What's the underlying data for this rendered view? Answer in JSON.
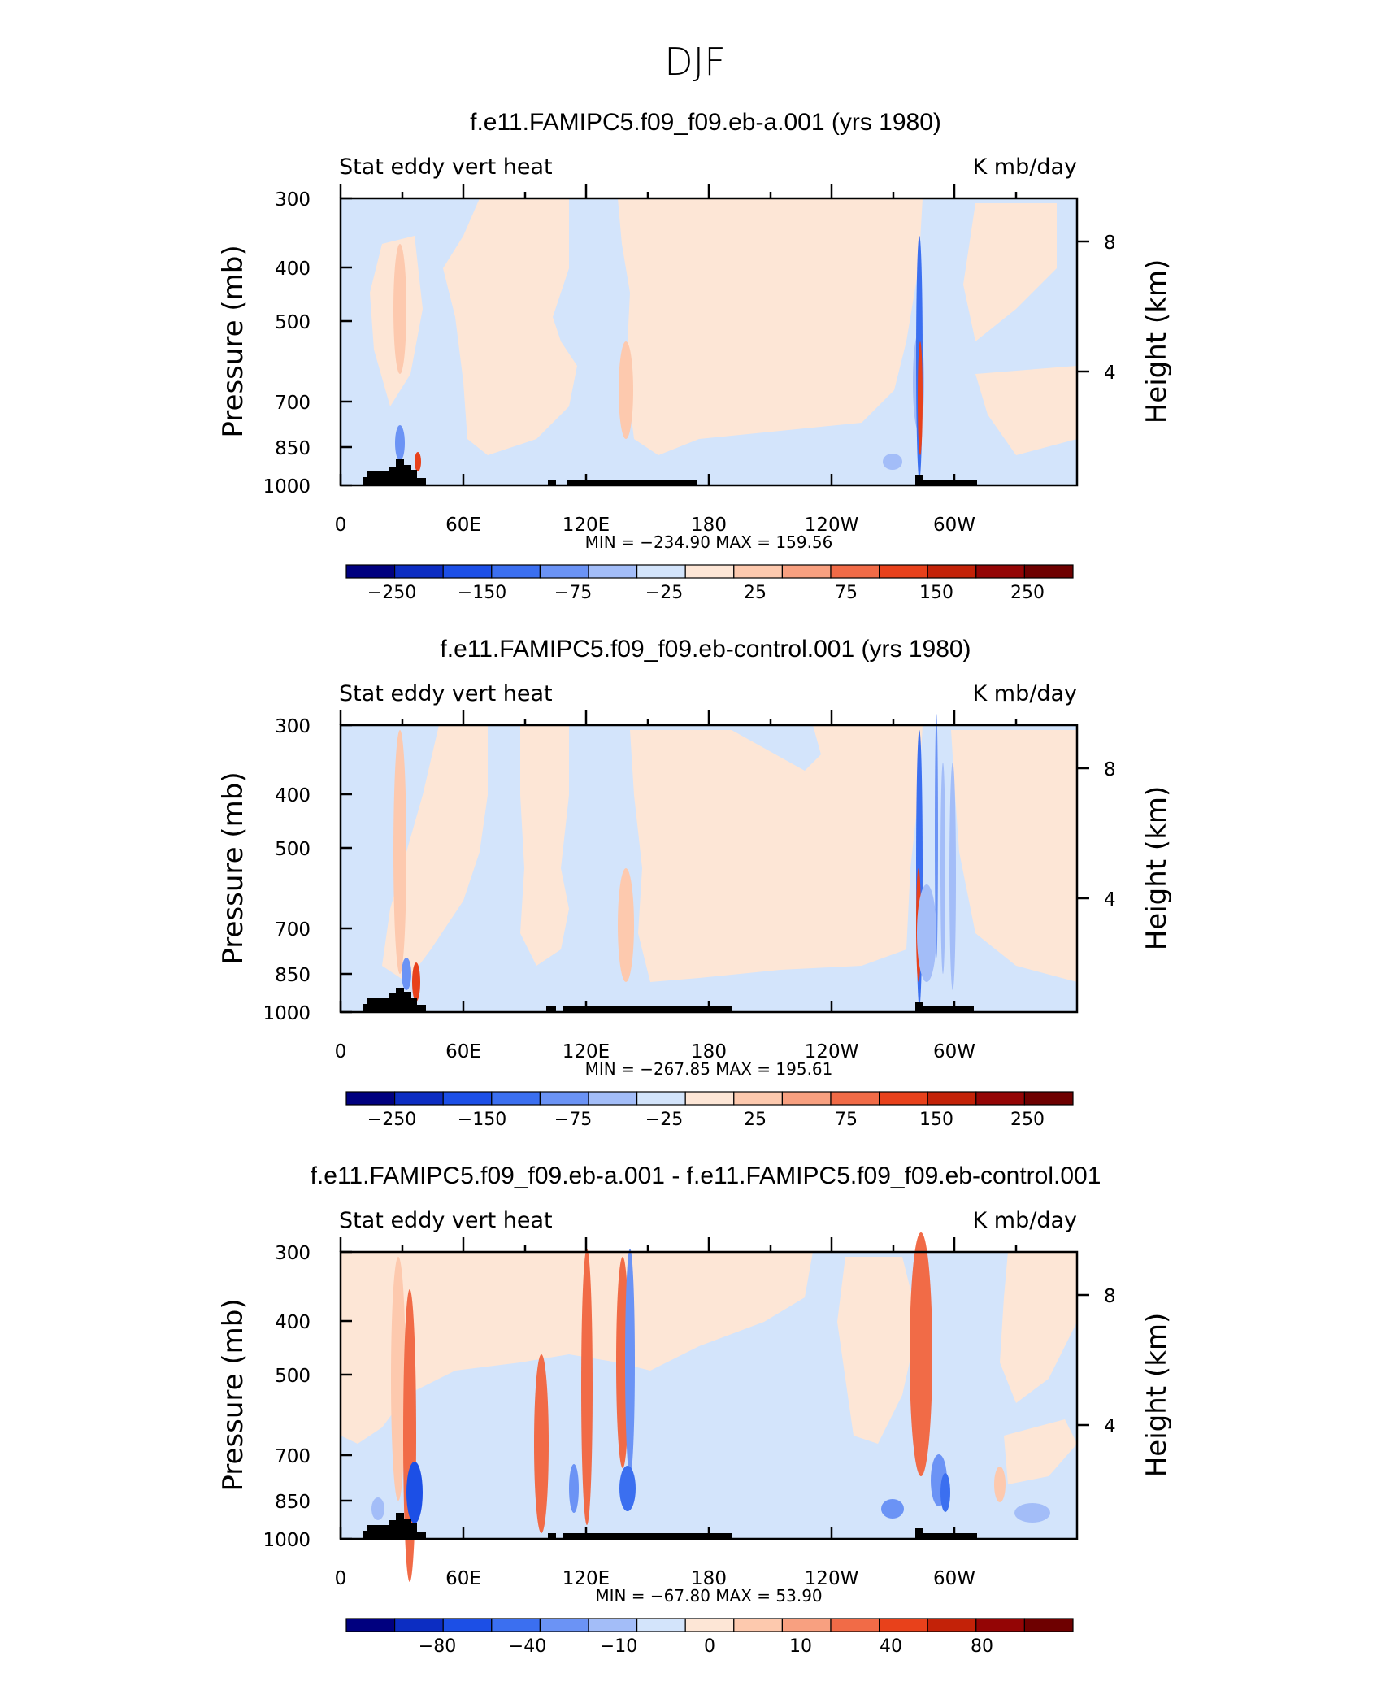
{
  "figure_title": "DJF",
  "palette": [
    "#00007f",
    "#0c2dc2",
    "#1c4fe6",
    "#3b6ff0",
    "#6b93f5",
    "#a3bdf8",
    "#d3e4fb",
    "#fde6d6",
    "#fdc9ae",
    "#f8a080",
    "#f16b47",
    "#e8411b",
    "#c32208",
    "#940505",
    "#6e0000"
  ],
  "chart_data": [
    {
      "type": "heatmap",
      "title": "f.e11.FAMIPC5.f09_f09.eb-a.001 (yrs 1980)",
      "left_label": "Stat eddy vert heat",
      "right_label": "K mb/day",
      "ylabel": "Pressure (mb)",
      "y2label": "Height (km)",
      "x_ticks": [
        "0",
        "60E",
        "120E",
        "180",
        "120W",
        "60W"
      ],
      "y_ticks": [
        "300",
        "400",
        "500",
        "700",
        "850",
        "1000"
      ],
      "y2_ticks": [
        "8",
        "4"
      ],
      "stats": "MIN = −234.90   MAX =  159.56",
      "colorbar_levels": [
        "−250",
        "−150",
        "−75",
        "−25",
        "25",
        "75",
        "150",
        "250"
      ],
      "min": -234.9,
      "max": 159.56
    },
    {
      "type": "heatmap",
      "title": "f.e11.FAMIPC5.f09_f09.eb-control.001 (yrs 1980)",
      "left_label": "Stat eddy vert heat",
      "right_label": "K mb/day",
      "ylabel": "Pressure (mb)",
      "y2label": "Height (km)",
      "x_ticks": [
        "0",
        "60E",
        "120E",
        "180",
        "120W",
        "60W"
      ],
      "y_ticks": [
        "300",
        "400",
        "500",
        "700",
        "850",
        "1000"
      ],
      "y2_ticks": [
        "8",
        "4"
      ],
      "stats": "MIN = −267.85   MAX =  195.61",
      "colorbar_levels": [
        "−250",
        "−150",
        "−75",
        "−25",
        "25",
        "75",
        "150",
        "250"
      ],
      "min": -267.85,
      "max": 195.61
    },
    {
      "type": "heatmap",
      "title": "f.e11.FAMIPC5.f09_f09.eb-a.001 - f.e11.FAMIPC5.f09_f09.eb-control.001",
      "left_label": "Stat eddy vert heat",
      "right_label": "K mb/day",
      "ylabel": "Pressure (mb)",
      "y2label": "Height (km)",
      "x_ticks": [
        "0",
        "60E",
        "120E",
        "180",
        "120W",
        "60W"
      ],
      "y_ticks": [
        "300",
        "400",
        "500",
        "700",
        "850",
        "1000"
      ],
      "y2_ticks": [
        "8",
        "4"
      ],
      "stats": "MIN =  −67.80   MAX =   53.90",
      "colorbar_levels": [
        "−80",
        "−40",
        "−10",
        "0",
        "10",
        "40",
        "80"
      ],
      "min": -67.8,
      "max": 53.9
    }
  ]
}
